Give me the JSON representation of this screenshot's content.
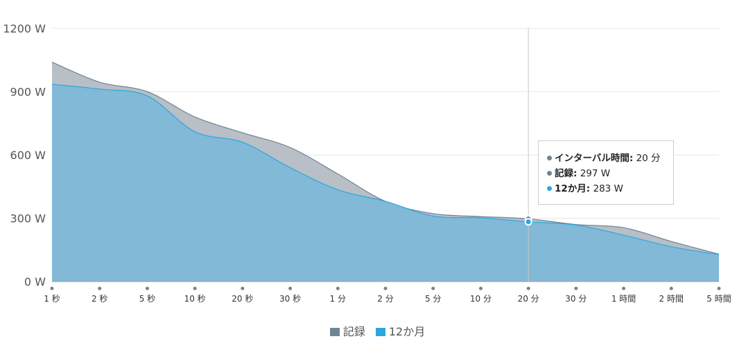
{
  "chart_data": {
    "type": "area",
    "title": "",
    "xlabel": "",
    "ylabel": "",
    "ylim": [
      0,
      1200
    ],
    "yticks": [
      "0 W",
      "300 W",
      "600 W",
      "900 W",
      "1200 W"
    ],
    "ytick_values": [
      0,
      300,
      600,
      900,
      1200
    ],
    "categories": [
      "1 秒",
      "2 秒",
      "5 秒",
      "10 秒",
      "20 秒",
      "30 秒",
      "1 分",
      "2 分",
      "5 分",
      "10 分",
      "20 分",
      "30 分",
      "1 時間",
      "2 時間",
      "5 時間"
    ],
    "series": [
      {
        "name": "記録",
        "color": "#6f8594",
        "fill": "#b8bfc6",
        "values": [
          1040,
          945,
          900,
          780,
          705,
          635,
          510,
          380,
          322,
          308,
          297,
          270,
          255,
          190,
          130
        ]
      },
      {
        "name": "12か月",
        "color": "#29a8e0",
        "fill": "#82b9d6",
        "values": [
          935,
          912,
          880,
          710,
          660,
          540,
          435,
          380,
          310,
          302,
          283,
          268,
          220,
          165,
          128
        ]
      }
    ],
    "grid": true,
    "legend_position": "bottom-center",
    "crosshair_index": 10,
    "tooltip": {
      "interval_label": "インターバル時間:",
      "interval_value": "20 分",
      "rows": [
        {
          "label": "記録:",
          "value": "297 W",
          "color": "#6f8594"
        },
        {
          "label": "12か月:",
          "value": "283 W",
          "color": "#29a8e0"
        }
      ]
    }
  }
}
